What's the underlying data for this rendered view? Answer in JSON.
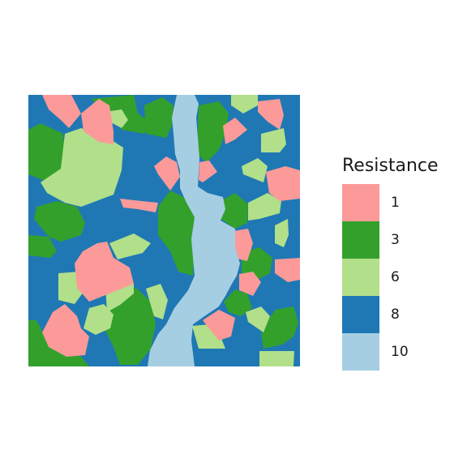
{
  "legend": {
    "title": "Resistance",
    "items": [
      {
        "label": "1",
        "color": "#fb9a99"
      },
      {
        "label": "3",
        "color": "#33a02c"
      },
      {
        "label": "6",
        "color": "#b2df8a"
      },
      {
        "label": "8",
        "color": "#1f78b4"
      },
      {
        "label": "10",
        "color": "#a6cee3"
      }
    ]
  }
}
